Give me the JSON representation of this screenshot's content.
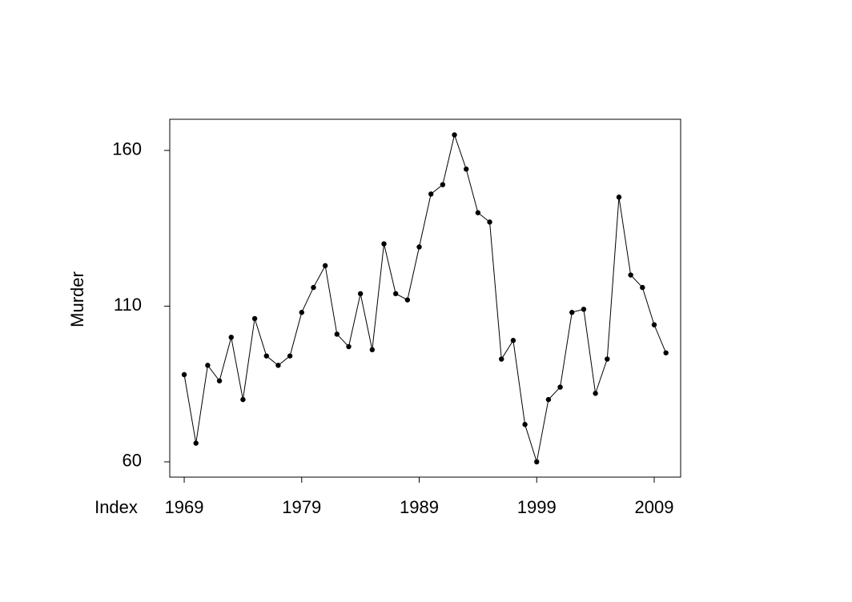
{
  "chart_data": {
    "type": "line",
    "x": [
      1969,
      1970,
      1971,
      1972,
      1973,
      1974,
      1975,
      1976,
      1977,
      1978,
      1979,
      1980,
      1981,
      1982,
      1983,
      1984,
      1985,
      1986,
      1987,
      1988,
      1989,
      1990,
      1991,
      1992,
      1993,
      1994,
      1995,
      1996,
      1997,
      1998,
      1999,
      2000,
      2001,
      2002,
      2003,
      2004,
      2005,
      2006,
      2007,
      2008,
      2009,
      2010
    ],
    "values": [
      88,
      66,
      91,
      86,
      100,
      80,
      106,
      94,
      91,
      94,
      108,
      116,
      123,
      101,
      97,
      114,
      96,
      130,
      114,
      112,
      129,
      146,
      149,
      165,
      154,
      140,
      137,
      93,
      99,
      72,
      60,
      80,
      84,
      108,
      109,
      82,
      93,
      145,
      120,
      116,
      104,
      95
    ],
    "color": "#000000",
    "xlabel": "Index",
    "ylabel": "Murder",
    "xlim": [
      1967.77,
      2011.25
    ],
    "ylim": [
      55.1,
      170.0
    ],
    "xticks": [
      1969,
      1979,
      1989,
      1999,
      2009
    ],
    "yticks": [
      60,
      110,
      160
    ]
  }
}
